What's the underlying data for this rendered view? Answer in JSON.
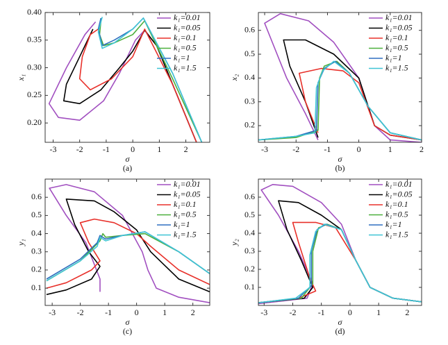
{
  "chart_data": [
    {
      "type": "line",
      "xlabel": "σ",
      "ylabel": "x₁",
      "caption": "(a)",
      "legend": "upper right",
      "xlim": [
        -3.3,
        2.9
      ],
      "ylim": [
        0.165,
        0.4
      ],
      "xticks": [
        -3,
        -2,
        -1,
        0,
        1,
        2
      ],
      "yticks": [
        {
          "value": 0.2,
          "label": "0.20"
        },
        {
          "value": 0.25,
          "label": "0.25"
        },
        {
          "value": 0.3,
          "label": "0.30"
        },
        {
          "value": 0.35,
          "label": "0.35"
        },
        {
          "value": 0.4,
          "label": "0.40"
        }
      ],
      "series": [
        {
          "name": "k₁=0.01",
          "color": "#a14fc0",
          "x": [
            2.4,
            1.5,
            0.9,
            0.45,
            0.1,
            -0.5,
            -1.1,
            -2,
            -2.8,
            -3.15,
            -2.5,
            -1.8,
            -1.4
          ],
          "values": [
            0.165,
            0.27,
            0.34,
            0.368,
            0.35,
            0.29,
            0.24,
            0.205,
            0.21,
            0.235,
            0.3,
            0.36,
            0.383
          ]
        },
        {
          "name": "k₁=0.05",
          "color": "#000000",
          "x": [
            2.4,
            1.5,
            0.9,
            0.45,
            0,
            -0.5,
            -1.2,
            -2,
            -2.6,
            -2.5,
            -2,
            -1.5
          ],
          "values": [
            0.165,
            0.27,
            0.34,
            0.368,
            0.33,
            0.3,
            0.26,
            0.235,
            0.24,
            0.27,
            0.32,
            0.37
          ]
        },
        {
          "name": "k₁=0.1",
          "color": "#e8302a",
          "x": [
            2.4,
            1.5,
            0.45,
            0,
            -0.8,
            -1.6,
            -2,
            -1.9,
            -1.6,
            -1.3
          ],
          "values": [
            0.165,
            0.27,
            0.37,
            0.32,
            0.28,
            0.26,
            0.28,
            0.32,
            0.36,
            0.37
          ]
        },
        {
          "name": "k₁=0.5",
          "color": "#4caf3c",
          "x": [
            2.6,
            1.5,
            0.45,
            0,
            -0.7,
            -1.1,
            -1.25,
            -1.2
          ],
          "values": [
            0.165,
            0.28,
            0.385,
            0.36,
            0.345,
            0.34,
            0.36,
            0.385
          ]
        },
        {
          "name": "k₁=1",
          "color": "#2f6fc0",
          "x": [
            2.6,
            1.5,
            0.4,
            0,
            -0.7,
            -1.15,
            -1.3,
            -1.2
          ],
          "values": [
            0.165,
            0.29,
            0.39,
            0.37,
            0.35,
            0.34,
            0.37,
            0.39
          ]
        },
        {
          "name": "k₁=1.5",
          "color": "#3fc4d4",
          "x": [
            2.6,
            1.5,
            0.4,
            0,
            -0.7,
            -1.15,
            -1.3,
            -1.15
          ],
          "values": [
            0.165,
            0.29,
            0.39,
            0.37,
            0.345,
            0.335,
            0.365,
            0.392
          ]
        }
      ]
    },
    {
      "type": "line",
      "xlabel": "σ",
      "ylabel": "x₂",
      "caption": "(b)",
      "legend": "upper right",
      "xlim": [
        -3.2,
        2
      ],
      "ylim": [
        0.13,
        0.675
      ],
      "xticks": [
        -3,
        -2,
        -1,
        0,
        1,
        2
      ],
      "yticks": [
        0.2,
        0.3,
        0.4,
        0.5,
        0.6
      ],
      "series": [
        {
          "name": "k₁=0.01",
          "color": "#a14fc0",
          "x": [
            2,
            1,
            0.5,
            0,
            -0.8,
            -1.6,
            -2.5,
            -3,
            -2.3,
            -1.7,
            -1.3
          ],
          "values": [
            0.13,
            0.14,
            0.2,
            0.4,
            0.55,
            0.64,
            0.67,
            0.63,
            0.4,
            0.25,
            0.14
          ]
        },
        {
          "name": "k₁=0.05",
          "color": "#000000",
          "x": [
            2,
            1,
            0.5,
            0,
            -0.8,
            -1.7,
            -2.4,
            -2.2,
            -1.7,
            -1.3
          ],
          "values": [
            0.14,
            0.16,
            0.2,
            0.4,
            0.5,
            0.56,
            0.56,
            0.45,
            0.3,
            0.15
          ]
        },
        {
          "name": "k₁=0.1",
          "color": "#e8302a",
          "x": [
            2,
            1,
            0.5,
            0,
            -0.5,
            -1.2,
            -1.9,
            -1.7,
            -1.3
          ],
          "values": [
            0.14,
            0.16,
            0.2,
            0.38,
            0.43,
            0.44,
            0.42,
            0.3,
            0.17
          ]
        },
        {
          "name": "k₁=0.5",
          "color": "#4caf3c",
          "x": [
            -3.2,
            -2,
            -1.3,
            -1.25,
            -1.1,
            -0.7,
            -0.3,
            0.3,
            1,
            2
          ],
          "values": [
            0.14,
            0.15,
            0.18,
            0.4,
            0.45,
            0.47,
            0.42,
            0.28,
            0.17,
            0.14
          ]
        },
        {
          "name": "k₁=1",
          "color": "#2f6fc0",
          "x": [
            -3.2,
            -2,
            -1.35,
            -1.3,
            -1.1,
            -0.75,
            -0.3,
            0.3,
            1,
            2
          ],
          "values": [
            0.14,
            0.155,
            0.18,
            0.38,
            0.44,
            0.47,
            0.42,
            0.28,
            0.17,
            0.14
          ]
        },
        {
          "name": "k₁=1.5",
          "color": "#3fc4d4",
          "x": [
            -3.2,
            -2,
            -1.4,
            -1.35,
            -1.15,
            -0.8,
            -0.3,
            0.3,
            1,
            2
          ],
          "values": [
            0.14,
            0.155,
            0.17,
            0.36,
            0.43,
            0.47,
            0.42,
            0.28,
            0.17,
            0.14
          ]
        }
      ]
    },
    {
      "type": "line",
      "xlabel": "σ",
      "ylabel": "y₁",
      "caption": "(c)",
      "legend": "upper right",
      "xlim": [
        -3.25,
        2.6
      ],
      "ylim": [
        0.005,
        0.7
      ],
      "xticks": [
        -3,
        -2,
        -1,
        0,
        1,
        2
      ],
      "yticks": [
        0.1,
        0.2,
        0.3,
        0.4,
        0.5,
        0.6
      ],
      "series": [
        {
          "name": "k₁=0.01",
          "color": "#a14fc0",
          "x": [
            2.6,
            1.5,
            0.7,
            0.4,
            0.2,
            -0.5,
            -1.5,
            -2.5,
            -3.1,
            -2.5,
            -1.8,
            -1.3,
            -1.3
          ],
          "values": [
            0.02,
            0.05,
            0.1,
            0.2,
            0.3,
            0.5,
            0.63,
            0.67,
            0.65,
            0.5,
            0.35,
            0.15,
            0.08
          ]
        },
        {
          "name": "k₁=0.05",
          "color": "#000000",
          "x": [
            2.6,
            1.5,
            0.5,
            0,
            -0.8,
            -1.5,
            -2.5,
            -2.2,
            -1.7,
            -1.3,
            -1.6,
            -2.5,
            -3.2
          ],
          "values": [
            0.08,
            0.15,
            0.3,
            0.42,
            0.52,
            0.58,
            0.59,
            0.45,
            0.3,
            0.22,
            0.15,
            0.09,
            0.065
          ]
        },
        {
          "name": "k₁=0.1",
          "color": "#e8302a",
          "x": [
            2.6,
            1.5,
            0.5,
            0,
            -0.8,
            -1.5,
            -2,
            -1.7,
            -1.3,
            -1.6,
            -2.5,
            -3.2
          ],
          "values": [
            0.12,
            0.2,
            0.33,
            0.4,
            0.46,
            0.48,
            0.46,
            0.35,
            0.25,
            0.2,
            0.13,
            0.1
          ]
        },
        {
          "name": "k₁=0.5",
          "color": "#4caf3c",
          "x": [
            2.6,
            1.5,
            0.3,
            -0.5,
            -1.1,
            -1.2,
            -1.3,
            -2,
            -3.2
          ],
          "values": [
            0.18,
            0.3,
            0.4,
            0.39,
            0.38,
            0.4,
            0.36,
            0.25,
            0.14
          ]
        },
        {
          "name": "k₁=1",
          "color": "#2f6fc0",
          "x": [
            2.6,
            1.5,
            0.3,
            -0.5,
            -1.1,
            -1.3,
            -1.4,
            -2,
            -3.2
          ],
          "values": [
            0.18,
            0.3,
            0.41,
            0.39,
            0.37,
            0.39,
            0.35,
            0.26,
            0.15
          ]
        },
        {
          "name": "k₁=1.5",
          "color": "#3fc4d4",
          "x": [
            2.6,
            1.5,
            0.3,
            -0.5,
            -1.1,
            -1.3,
            -1.4,
            -2,
            -3.2
          ],
          "values": [
            0.18,
            0.3,
            0.41,
            0.39,
            0.36,
            0.38,
            0.33,
            0.25,
            0.14
          ]
        }
      ]
    },
    {
      "type": "line",
      "xlabel": "σ",
      "ylabel": "y₂",
      "caption": "(d)",
      "legend": "upper right",
      "xlim": [
        -3.2,
        2.5
      ],
      "ylim": [
        0,
        0.7
      ],
      "xticks": [
        -3,
        -2,
        -1,
        0,
        1,
        2
      ],
      "yticks": [
        0.1,
        0.2,
        0.3,
        0.4,
        0.5,
        0.6
      ],
      "series": [
        {
          "name": "k₁=0.01",
          "color": "#a14fc0",
          "x": [
            2.5,
            1.5,
            0.7,
            0.2,
            -0.3,
            -1,
            -2,
            -2.7,
            -3.1,
            -2.5,
            -1.8,
            -1.3,
            -1.5,
            -3.2
          ],
          "values": [
            0.02,
            0.04,
            0.1,
            0.25,
            0.45,
            0.57,
            0.66,
            0.67,
            0.64,
            0.5,
            0.3,
            0.12,
            0.04,
            0.01
          ]
        },
        {
          "name": "k₁=0.05",
          "color": "#000000",
          "x": [
            2.5,
            1.5,
            0.7,
            0.2,
            -0.3,
            -1,
            -1.8,
            -2.5,
            -2.2,
            -1.7,
            -1.3,
            -1.6,
            -3.2
          ],
          "values": [
            0.02,
            0.04,
            0.1,
            0.25,
            0.42,
            0.5,
            0.57,
            0.58,
            0.42,
            0.25,
            0.1,
            0.04,
            0.015
          ]
        },
        {
          "name": "k₁=0.1",
          "color": "#e8302a",
          "x": [
            2.5,
            1.5,
            0.7,
            0.2,
            -0.5,
            -1.2,
            -2,
            -1.8,
            -1.4,
            -1.2,
            -1.8,
            -3.2
          ],
          "values": [
            0.02,
            0.04,
            0.1,
            0.25,
            0.43,
            0.46,
            0.46,
            0.35,
            0.15,
            0.08,
            0.04,
            0.015
          ]
        },
        {
          "name": "k₁=0.5",
          "color": "#4caf3c",
          "x": [
            2.5,
            1.5,
            0.7,
            0.2,
            -0.3,
            -0.8,
            -1.1,
            -1.3,
            -1.3,
            -1.7,
            -3.2
          ],
          "values": [
            0.02,
            0.04,
            0.1,
            0.25,
            0.42,
            0.45,
            0.43,
            0.3,
            0.12,
            0.04,
            0.015
          ]
        },
        {
          "name": "k₁=1",
          "color": "#2f6fc0",
          "x": [
            2.5,
            1.5,
            0.7,
            0.2,
            -0.3,
            -0.85,
            -1.15,
            -1.35,
            -1.35,
            -1.8,
            -3.2
          ],
          "values": [
            0.02,
            0.04,
            0.1,
            0.25,
            0.42,
            0.45,
            0.42,
            0.3,
            0.11,
            0.04,
            0.015
          ]
        },
        {
          "name": "k₁=1.5",
          "color": "#3fc4d4",
          "x": [
            2.5,
            1.5,
            0.7,
            0.2,
            -0.3,
            -0.9,
            -1.2,
            -1.4,
            -1.4,
            -1.9,
            -3.2
          ],
          "values": [
            0.02,
            0.04,
            0.1,
            0.25,
            0.42,
            0.45,
            0.41,
            0.28,
            0.1,
            0.04,
            0.015
          ]
        }
      ]
    }
  ]
}
